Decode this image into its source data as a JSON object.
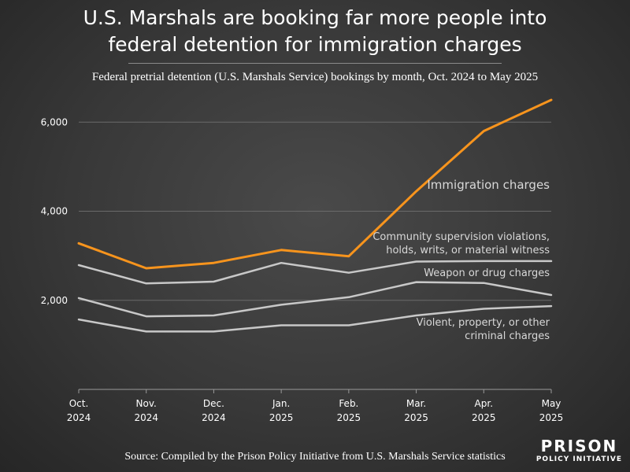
{
  "chart_data": {
    "type": "line",
    "title": "U.S. Marshals are booking far more people into federal detention for immigration charges",
    "title_lines": [
      "U.S. Marshals are booking far more people into",
      "federal detention for immigration charges"
    ],
    "subtitle": "Federal pretrial detention (U.S. Marshals Service) bookings by month, Oct. 2024 to May 2025",
    "categories": [
      [
        "Oct.",
        "2024"
      ],
      [
        "Nov.",
        "2024"
      ],
      [
        "Dec.",
        "2024"
      ],
      [
        "Jan.",
        "2025"
      ],
      [
        "Feb.",
        "2025"
      ],
      [
        "Mar.",
        "2025"
      ],
      [
        "Apr.",
        "2025"
      ],
      [
        "May",
        "2025"
      ]
    ],
    "ylim": [
      0,
      6800
    ],
    "yticks": [
      2000,
      4000,
      6000
    ],
    "ytick_labels": [
      "2,000",
      "4,000",
      "6,000"
    ],
    "grid": true,
    "series": [
      {
        "name": "Immigration charges",
        "label_lines": [
          "Immigration charges"
        ],
        "color": "#f7941d",
        "values": [
          3280,
          2720,
          2840,
          3130,
          2990,
          4450,
          5800,
          6500
        ]
      },
      {
        "name": "Community supervision violations, holds, writs, or material witness",
        "label_lines": [
          "Community supervision violations,",
          "holds, writs, or material witness"
        ],
        "color": "#c8c8c8",
        "values": [
          2790,
          2380,
          2420,
          2840,
          2620,
          2870,
          2880,
          2880
        ]
      },
      {
        "name": "Weapon or drug charges",
        "label_lines": [
          "Weapon or drug charges"
        ],
        "color": "#c8c8c8",
        "values": [
          2050,
          1640,
          1660,
          1900,
          2070,
          2410,
          2390,
          2120
        ]
      },
      {
        "name": "Violent, property, or other criminal charges",
        "label_lines": [
          "Violent, property, or other",
          "criminal charges"
        ],
        "color": "#c8c8c8",
        "values": [
          1570,
          1300,
          1300,
          1440,
          1440,
          1660,
          1810,
          1870
        ]
      }
    ],
    "source": "Source: Compiled by the Prison Policy Initiative from U.S. Marshals Service statistics"
  },
  "logo": {
    "line1": "PRISON",
    "line2": "POLICY INITIATIVE"
  }
}
